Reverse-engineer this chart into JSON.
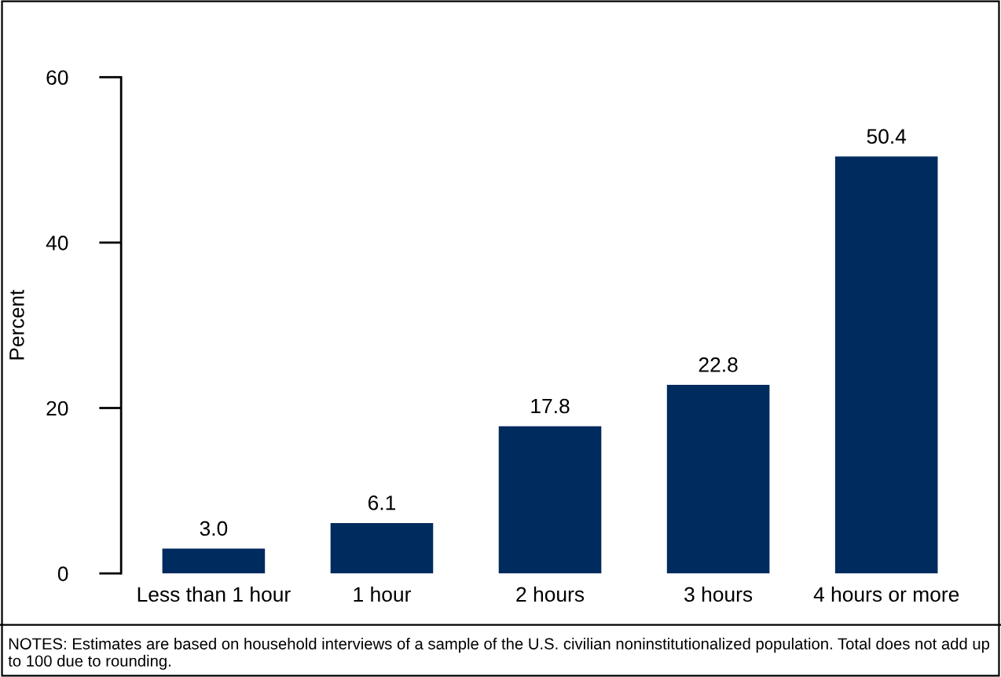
{
  "chart_data": {
    "type": "bar",
    "categories": [
      "Less than 1 hour",
      "1 hour",
      "2 hours",
      "3 hours",
      "4 hours or more"
    ],
    "values": [
      3.0,
      6.1,
      17.8,
      22.8,
      50.4
    ],
    "value_labels": [
      "3.0",
      "6.1",
      "17.8",
      "22.8",
      "50.4"
    ],
    "color": "#002b5f",
    "ylabel": "Percent",
    "ylim": [
      0,
      60
    ],
    "yticks": [
      0,
      20,
      40,
      60
    ],
    "grid": false,
    "legend": false,
    "annotations": [
      "NOTES: Estimates are based on household interviews of a sample of the U.S. civilian noninstitutionalized population. Total does not add up to 100 due to rounding."
    ]
  }
}
